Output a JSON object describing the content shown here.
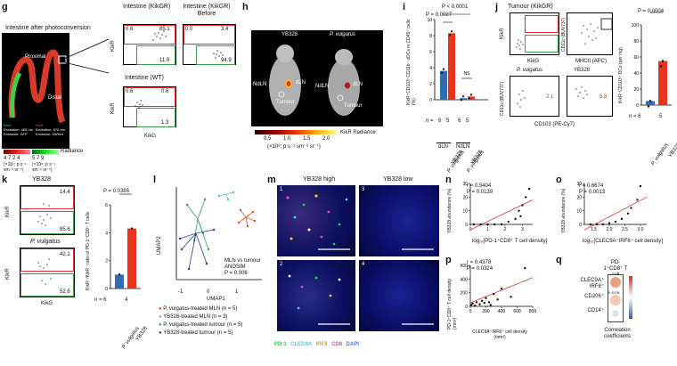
{
  "panel_g": {
    "label": "g",
    "title": "Intestine after photoconversion",
    "proximal": "Proximal",
    "distal": "Distal",
    "kikg_caption": "KikG",
    "kikg_exc": "Excitation: 465 nm",
    "kikg_emi": "Emission: GFP",
    "kikr_caption": "KikR",
    "kikr_exc": "Excitation: 570 nm",
    "kikr_emi": "Emission: DsRed",
    "radiance": "Radiance",
    "scale_left": "4 7 2 4",
    "scale_right": "5 7 9",
    "units_left": "(×10⁷; p s⁻¹ sm⁻² sr⁻¹)",
    "units_right": "(×10⁸; p s⁻¹ sm⁻² sr⁻¹)",
    "flow": [
      {
        "title": "Intestine (KikGR)",
        "tl": "0.6",
        "tr": "85.1",
        "br": "11.9"
      },
      {
        "title": "Intestine (KikGR) Before",
        "tl": "0.0",
        "tr": "3.4",
        "br": "94.9"
      },
      {
        "title": "Intestine (WT)",
        "tl": "0.6",
        "tr": "0.6",
        "br": "1.3"
      }
    ],
    "ylabel": "KikR",
    "xlabel": "KikG"
  },
  "panel_h": {
    "label": "h",
    "left_title": "YB328",
    "right_title": "P. vulgatus",
    "ndln_left": "NdLN",
    "dln_left": "dLN",
    "tumour_left": "Tumour",
    "ndln_right": "NdLN",
    "dln_right": "dLN",
    "tumour_right": "Tumour",
    "colorbar_ticks": [
      "0.5",
      "1.0",
      "1.5",
      "2.0"
    ],
    "colorbar_label": "KikR Radiance",
    "units": "(×10⁸; p s⁻¹ sm⁻² sr⁻¹)"
  },
  "panel_i": {
    "label": "i",
    "ylabel": "KikR⁺CD103⁺CD11b⁻ cDCs in CD45⁺ cells (%)",
    "p1": "P < 0.0001",
    "p2": "P = 0.0027",
    "ns": "NS",
    "n_label": "n =",
    "n_values": [
      "6",
      "5",
      "6",
      "5"
    ],
    "groups": [
      "P. vulgatus",
      "YB328",
      "P. vulgatus",
      "YB328"
    ],
    "sublabels": [
      "dLN",
      "NdLN"
    ],
    "yticks": [
      "0",
      "2",
      "4",
      "6",
      "8",
      "10"
    ],
    "chart_data": {
      "type": "bar",
      "categories": [
        "dLN P. vulgatus",
        "dLN YB328",
        "NdLN P. vulgatus",
        "NdLN YB328"
      ],
      "values": [
        3.6,
        8.3,
        0.2,
        0.4
      ],
      "ylim": [
        0,
        10
      ]
    }
  },
  "panel_j": {
    "label": "j",
    "tumour_title": "Tumour (KikGR)",
    "y1": "KikR",
    "x1": "KikG",
    "y2": "CD11c (BUV737)",
    "x2": "MHCII (APC)",
    "pv": "P. vulgatus",
    "yb": "YB328",
    "val_pv": "2.1",
    "val_yb": "5.8",
    "x3": "CD103 (PE-Cy7)",
    "y3": "CD11c (BUV737)",
    "p": "P = 0.0004",
    "ylabel": "KikR⁺CD103⁺ DCs (per mg)",
    "yticks": [
      "0",
      "20",
      "40",
      "60",
      "80",
      "100"
    ],
    "n_label": "n = 6",
    "n2": "5",
    "groups": [
      "P. vulgatus",
      "YB328"
    ],
    "chart_data": {
      "type": "bar",
      "categories": [
        "P. vulgatus",
        "YB328"
      ],
      "values": [
        5,
        55
      ],
      "ylim": [
        0,
        100
      ]
    }
  },
  "panel_k": {
    "label": "k",
    "top_title": "YB328",
    "bottom_title": "P. vulgatus",
    "top_tr": "14.4",
    "top_br": "85.6",
    "bot_tr": "42.1",
    "bot_br": "52.6",
    "ylabel": "KikR",
    "xlabel": "KikG",
    "p": "P = 0.0385",
    "bar_ylabel": "KikR⁺/KikR⁻ ratio of PD-1⁺CD8⁺ T cells",
    "yticks": [
      "0",
      "2",
      "4",
      "6"
    ],
    "n_label": "n = 6",
    "n2": "4",
    "groups": [
      "P. vulgatus",
      "YB328"
    ],
    "chart_data": {
      "type": "bar",
      "categories": [
        "P. vulgatus",
        "YB328"
      ],
      "values": [
        1.0,
        4.3
      ],
      "ylim": [
        0,
        6
      ]
    }
  },
  "panel_l": {
    "label": "l",
    "ylabel": "UMAP2",
    "xlabel": "UMAP1",
    "xticks": [
      "-1",
      "0",
      "1"
    ],
    "annot1": "MLN vs tumour",
    "annot2": "ANOSIM",
    "annot3": "P = 0.006",
    "legend": [
      {
        "text": "P. vulgatus-treated MLN (n = 5)",
        "color": "#e8511f"
      },
      {
        "text": "YB328-treated MLN (n = 3)",
        "color": "#5fb7ce"
      },
      {
        "text": "P. vulgatus-treated tumour (n = 5)",
        "color": "#2e9c6a"
      },
      {
        "text": "YB328-treated tumour (n = 5)",
        "color": "#2b3f8c"
      }
    ]
  },
  "panel_m": {
    "label": "m",
    "high_title": "YB328 high",
    "low_title": "YB328 low",
    "nums": [
      "1",
      "2",
      "3",
      "4"
    ],
    "legend": [
      {
        "text": "PD-1",
        "color": "#22cc44"
      },
      {
        "text": "CLEC9A",
        "color": "#3ad0e8"
      },
      {
        "text": "IRF8",
        "color": "#e8d020"
      },
      {
        "text": "CD8",
        "color": "#e040d0"
      },
      {
        "text": "DAPI",
        "color": "#5070ff"
      }
    ]
  },
  "panel_n": {
    "label": "n",
    "r": "r = 0.5404",
    "p": "P = 0.0139",
    "ylabel": "YB328 abundance (%)",
    "xlabel": "log₁₀[PD-1⁺CD8⁺ T cell density]",
    "xticks": [
      "0",
      "1",
      "2",
      "3"
    ],
    "yticks": [
      "0",
      "10",
      "20",
      "30"
    ]
  },
  "panel_o": {
    "label": "o",
    "r": "r = 0.6674",
    "p": "P = 0.0013",
    "ylabel": "YB328 abundance (%)",
    "xlabel": "log₁₀[CLEC9A⁺IRF8⁺ cell density]",
    "xticks": [
      "1.5",
      "2.0",
      "2.5",
      "3.0"
    ],
    "yticks": [
      "0",
      "10",
      "20",
      "30"
    ]
  },
  "panel_p": {
    "label": "p",
    "r": "r = 0.4378",
    "p": "P = 0.0324",
    "ylabel": "PD-1⁺CD8⁺ T cell density (mm²)",
    "xlabel": "CLEC9A⁺IRF8⁺ cell density (mm²)",
    "xticks": [
      "0",
      "200",
      "400",
      "600",
      "800"
    ],
    "yticks": [
      "0",
      "200",
      "400",
      "600"
    ]
  },
  "panel_q": {
    "label": "q",
    "col_title": "PD-1⁺CD8⁺ T cell",
    "rows": [
      "CLEC9A⁺ IRF8⁺",
      "CD206⁺",
      "CD14⁺"
    ],
    "cell_value": "0.4378",
    "caption": "Correlation coefficients"
  }
}
